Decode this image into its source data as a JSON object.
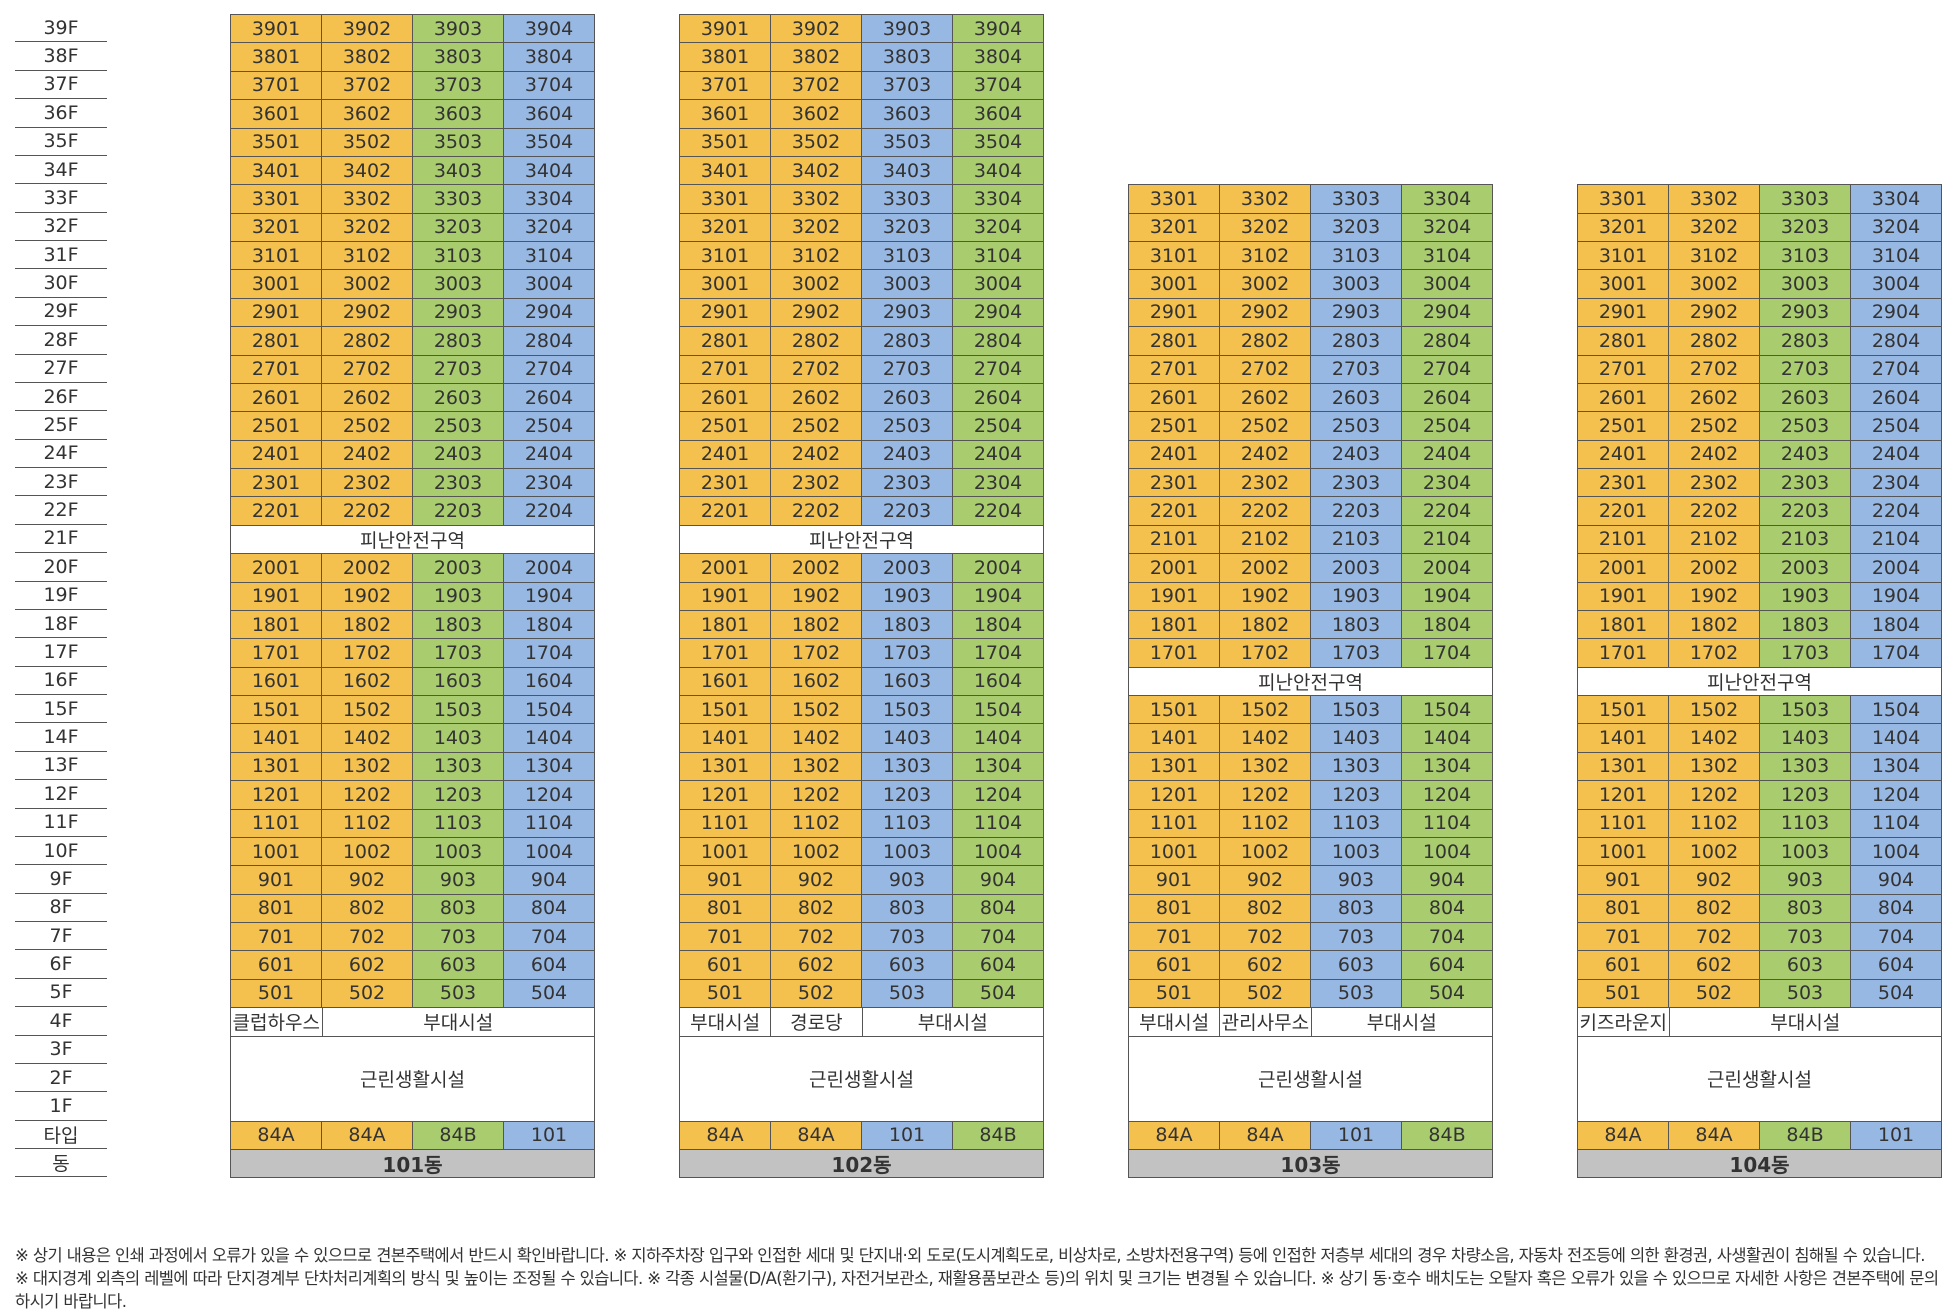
{
  "floors": [
    "39F",
    "38F",
    "37F",
    "36F",
    "35F",
    "34F",
    "33F",
    "32F",
    "31F",
    "30F",
    "29F",
    "28F",
    "27F",
    "26F",
    "25F",
    "24F",
    "23F",
    "22F",
    "21F",
    "20F",
    "19F",
    "18F",
    "17F",
    "16F",
    "15F",
    "14F",
    "13F",
    "12F",
    "11F",
    "10F",
    "9F",
    "8F",
    "7F",
    "6F",
    "5F",
    "4F",
    "3F",
    "2F",
    "1F",
    "타입",
    "동"
  ],
  "colors": {
    "orange": "#f4c04e",
    "green": "#a8cc6e",
    "blue": "#98b8e4",
    "white": "#ffffff",
    "gray": "#c2c2c2"
  },
  "refuge_label": "피난안전구역",
  "common_label": "근린생활시설",
  "buildings": [
    {
      "name": "101동",
      "top_floor": 39,
      "refuge_floor": 21,
      "unit_colors_upper": [
        "orange",
        "orange",
        "green",
        "blue"
      ],
      "unit_colors_lower": [
        "orange",
        "orange",
        "green",
        "blue"
      ],
      "facilities": [
        {
          "label": "클럽하우스",
          "span": 1
        },
        {
          "label": "부대시설",
          "span": 3
        }
      ],
      "types": [
        {
          "label": "84A",
          "color": "orange"
        },
        {
          "label": "84A",
          "color": "orange"
        },
        {
          "label": "84B",
          "color": "green"
        },
        {
          "label": "101",
          "color": "blue"
        }
      ]
    },
    {
      "name": "102동",
      "top_floor": 39,
      "refuge_floor": 21,
      "unit_colors_upper": [
        "orange",
        "orange",
        "blue",
        "green"
      ],
      "unit_colors_lower": [
        "orange",
        "orange",
        "blue",
        "green"
      ],
      "facilities": [
        {
          "label": "부대시설",
          "span": 1
        },
        {
          "label": "경로당",
          "span": 1
        },
        {
          "label": "부대시설",
          "span": 2
        }
      ],
      "types": [
        {
          "label": "84A",
          "color": "orange"
        },
        {
          "label": "84A",
          "color": "orange"
        },
        {
          "label": "101",
          "color": "blue"
        },
        {
          "label": "84B",
          "color": "green"
        }
      ]
    },
    {
      "name": "103동",
      "top_floor": 33,
      "refuge_floor": 16,
      "unit_colors_upper": [
        "orange",
        "orange",
        "blue",
        "green"
      ],
      "unit_colors_lower": [
        "orange",
        "orange",
        "blue",
        "green"
      ],
      "facilities": [
        {
          "label": "부대시설",
          "span": 1
        },
        {
          "label": "관리사무소",
          "span": 1
        },
        {
          "label": "부대시설",
          "span": 2
        }
      ],
      "types": [
        {
          "label": "84A",
          "color": "orange"
        },
        {
          "label": "84A",
          "color": "orange"
        },
        {
          "label": "101",
          "color": "blue"
        },
        {
          "label": "84B",
          "color": "green"
        }
      ]
    },
    {
      "name": "104동",
      "top_floor": 33,
      "refuge_floor": 16,
      "unit_colors_upper": [
        "orange",
        "orange",
        "green",
        "blue"
      ],
      "unit_colors_lower": [
        "orange",
        "orange",
        "green",
        "blue"
      ],
      "facilities": [
        {
          "label": "키즈라운지",
          "span": 1
        },
        {
          "label": "부대시설",
          "span": 3
        }
      ],
      "types": [
        {
          "label": "84A",
          "color": "orange"
        },
        {
          "label": "84A",
          "color": "orange"
        },
        {
          "label": "84B",
          "color": "green"
        },
        {
          "label": "101",
          "color": "blue"
        }
      ]
    }
  ],
  "notes": [
    "※ 상기 내용은 인쇄 과정에서 오류가 있을 수 있으므로 견본주택에서 반드시 확인바랍니다. ※ 지하주차장 입구와 인접한 세대 및 단지내·외 도로(도시계획도로, 비상차로, 소방차전용구역) 등에 인접한 저층부 세대의 경우 차량소음, 자동차 전조등에 의한 환경권, 사생활권이 침해될 수 있습니다.",
    "※ 대지경계 외측의 레벨에 따라 단지경계부 단차처리계획의 방식 및 높이는 조정될 수 있습니다. ※ 각종 시설물(D/A(환기구), 자전거보관소, 재활용품보관소 등)의 위치 및 크기는 변경될 수 있습니다. ※ 상기 동·호수 배치도는 오탈자 혹은 오류가 있을 수 있으므로 자세한 사항은 견본주택에 문의",
    "하시기 바랍니다."
  ]
}
